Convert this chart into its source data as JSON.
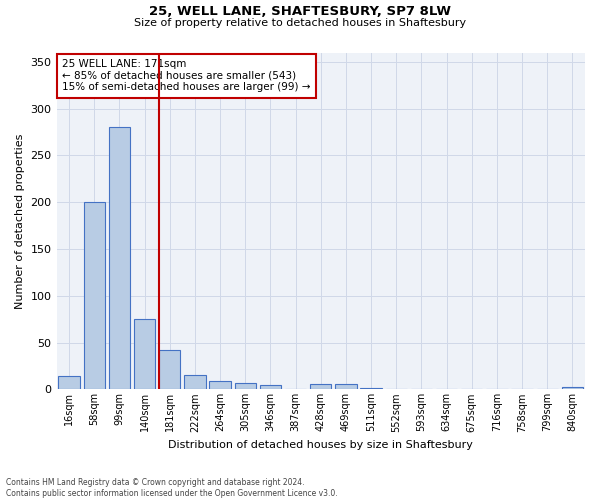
{
  "title1": "25, WELL LANE, SHAFTESBURY, SP7 8LW",
  "title2": "Size of property relative to detached houses in Shaftesbury",
  "xlabel": "Distribution of detached houses by size in Shaftesbury",
  "ylabel": "Number of detached properties",
  "bar_labels": [
    "16sqm",
    "58sqm",
    "99sqm",
    "140sqm",
    "181sqm",
    "222sqm",
    "264sqm",
    "305sqm",
    "346sqm",
    "387sqm",
    "428sqm",
    "469sqm",
    "511sqm",
    "552sqm",
    "593sqm",
    "634sqm",
    "675sqm",
    "716sqm",
    "758sqm",
    "799sqm",
    "840sqm"
  ],
  "bar_values": [
    14,
    200,
    280,
    75,
    42,
    15,
    9,
    7,
    5,
    0,
    6,
    6,
    1,
    0,
    0,
    0,
    0,
    0,
    0,
    0,
    3
  ],
  "bar_color": "#b8cce4",
  "bar_edge_color": "#4472c4",
  "grid_color": "#d0d8e8",
  "background_color": "#eef2f8",
  "vline_index": 4,
  "vline_color": "#c00000",
  "annotation_text": "25 WELL LANE: 171sqm\n← 85% of detached houses are smaller (543)\n15% of semi-detached houses are larger (99) →",
  "annotation_box_color": "#c00000",
  "ylim": [
    0,
    360
  ],
  "yticks": [
    0,
    50,
    100,
    150,
    200,
    250,
    300,
    350
  ],
  "footer_line1": "Contains HM Land Registry data © Crown copyright and database right 2024.",
  "footer_line2": "Contains public sector information licensed under the Open Government Licence v3.0."
}
